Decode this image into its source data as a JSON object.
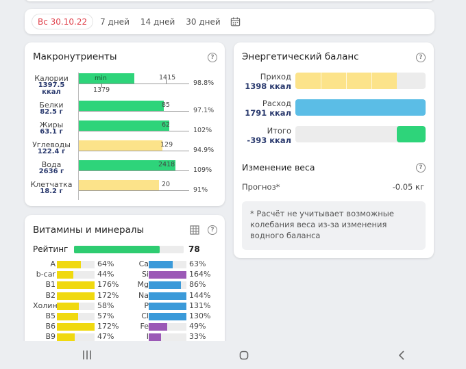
{
  "date_bar": {
    "selected": "Вс 30.10.22",
    "options": [
      "7 дней",
      "14 дней",
      "30 дней"
    ],
    "calendar_icon": "calendar-icon"
  },
  "macros": {
    "title": "Макронутриенты",
    "rows": [
      {
        "name": "Калории",
        "value": "1397.5",
        "unit": "ккал",
        "pct": "98.8%",
        "target": "1415",
        "min_label": "min",
        "min_value": "1379",
        "fill": 0.98,
        "color": "#2ed47a"
      },
      {
        "name": "Белки",
        "value": "82.5 г",
        "pct": "97.1%",
        "target": "85",
        "fill": 0.97,
        "color": "#2ed47a"
      },
      {
        "name": "Жиры",
        "value": "63.1 г",
        "pct": "102%",
        "target": "62",
        "fill": 1.02,
        "color": "#2ed47a"
      },
      {
        "name": "Углеводы",
        "value": "122.4 г",
        "pct": "94.9%",
        "target": "129",
        "fill": 0.949,
        "color": "#fce38a"
      },
      {
        "name": "Вода",
        "value": "2636 г",
        "pct": "109%",
        "target": "2418",
        "fill": 1.09,
        "color": "#2ed47a"
      },
      {
        "name": "Клетчатка",
        "value": "18.2 г",
        "pct": "91%",
        "target": "20",
        "fill": 0.91,
        "color": "#fce38a"
      }
    ]
  },
  "vitamins": {
    "title": "Витамины и минералы",
    "rating_label": "Рейтинг",
    "rating_value": "78",
    "rating_fill": 0.78,
    "left": [
      {
        "name": "A",
        "pct": "64%",
        "fill": 0.64
      },
      {
        "name": "b-car",
        "pct": "44%",
        "fill": 0.44
      },
      {
        "name": "B1",
        "pct": "176%",
        "fill": 1.0
      },
      {
        "name": "B2",
        "pct": "172%",
        "fill": 1.0
      },
      {
        "name": "Холин",
        "pct": "58%",
        "fill": 0.58
      },
      {
        "name": "B5",
        "pct": "57%",
        "fill": 0.57
      },
      {
        "name": "B6",
        "pct": "172%",
        "fill": 1.0
      },
      {
        "name": "B9",
        "pct": "47%",
        "fill": 0.47
      }
    ],
    "right": [
      {
        "name": "Ca",
        "pct": "63%",
        "fill": 0.63,
        "color": "#3b9ad9"
      },
      {
        "name": "Si",
        "pct": "164%",
        "fill": 1.0,
        "color": "#9b59b6"
      },
      {
        "name": "Mg",
        "pct": "86%",
        "fill": 0.86,
        "color": "#3b9ad9"
      },
      {
        "name": "Na",
        "pct": "144%",
        "fill": 1.0,
        "color": "#3b9ad9"
      },
      {
        "name": "P",
        "pct": "131%",
        "fill": 1.0,
        "color": "#3b9ad9"
      },
      {
        "name": "Cl",
        "pct": "130%",
        "fill": 1.0,
        "color": "#3b9ad9"
      },
      {
        "name": "Fe",
        "pct": "49%",
        "fill": 0.49,
        "color": "#9b59b6"
      },
      {
        "name": "I",
        "pct": "33%",
        "fill": 0.33,
        "color": "#9b59b6"
      }
    ],
    "vitamin_color": "#f0d90f"
  },
  "energy": {
    "title": "Энергетический баланс",
    "income_label": "Приход",
    "income_value": "1398 ккал",
    "expense_label": "Расход",
    "expense_value": "1791 ккал",
    "total_label": "Итого",
    "total_value": "-393 ккал",
    "weight_title": "Изменение веса",
    "forecast_label": "Прогноз*",
    "forecast_value": "-0.05 кг",
    "note": "* Расчёт не учитывает возможные колебания веса из-за изменения водного баланса"
  }
}
